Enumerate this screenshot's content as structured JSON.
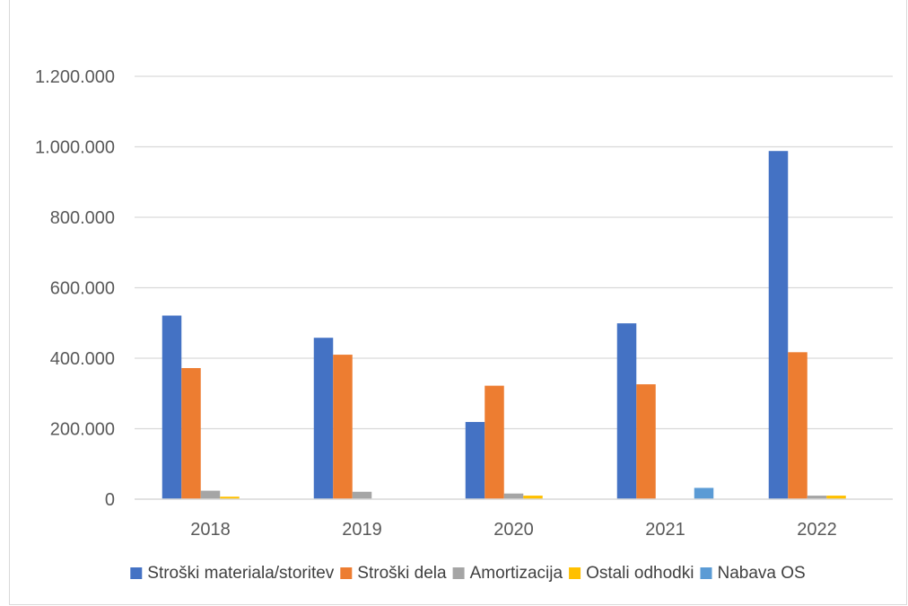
{
  "chart_data": {
    "type": "bar",
    "title": "",
    "xlabel": "",
    "ylabel": "",
    "ylim": [
      0,
      1200000
    ],
    "yticks": [
      0,
      200000,
      400000,
      600000,
      800000,
      1000000,
      1200000
    ],
    "ytick_labels": [
      "0",
      "200.000",
      "400.000",
      "600.000",
      "800.000",
      "1.000.000",
      "1.200.000"
    ],
    "categories": [
      "2018",
      "2019",
      "2020",
      "2021",
      "2022"
    ],
    "series": [
      {
        "name": "Stroški materiala/storitev",
        "color": "#4472c4",
        "values": [
          521000,
          458000,
          219000,
          499000,
          988000
        ]
      },
      {
        "name": "Stroški dela",
        "color": "#ed7d31",
        "values": [
          372000,
          410000,
          322000,
          326000,
          417000
        ]
      },
      {
        "name": "Amortizacija",
        "color": "#a5a5a5",
        "values": [
          24000,
          21000,
          16000,
          0,
          10000
        ]
      },
      {
        "name": "Ostali odhodki",
        "color": "#ffc000",
        "values": [
          7000,
          0,
          10000,
          0,
          10000
        ]
      },
      {
        "name": "Nabava OS",
        "color": "#5b9bd5",
        "values": [
          0,
          0,
          0,
          32000,
          0
        ]
      }
    ],
    "grid": true,
    "legend_position": "bottom"
  }
}
